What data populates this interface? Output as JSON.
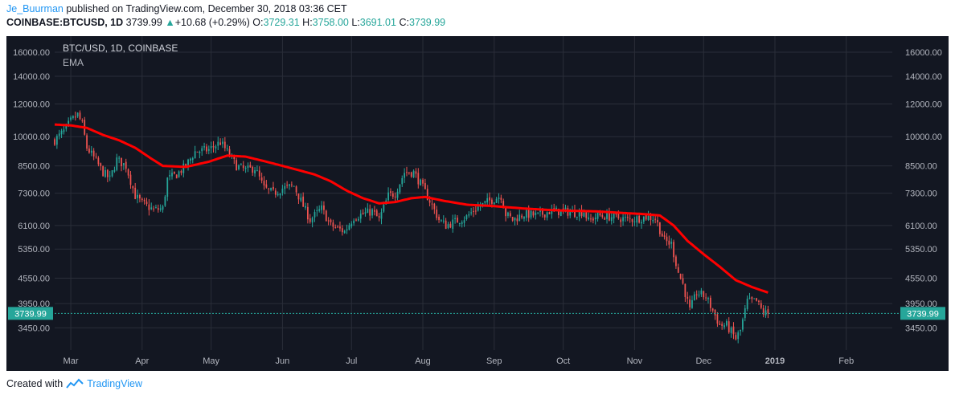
{
  "header": {
    "author": "Je_Buurman",
    "published_text": "published on TradingView.com, December 30, 2018 03:36 CET",
    "symbol": "COINBASE:BTCUSD, 1D",
    "last": "3739.99",
    "up_arrow": "▲",
    "change": "+10.68 (+0.29%)",
    "o_label": "O:",
    "o_value": "3729.31",
    "h_label": "H:",
    "h_value": "3758.00",
    "l_label": "L:",
    "l_value": "3691.01",
    "c_label": "C:",
    "c_value": "3739.99"
  },
  "footer": {
    "created_with": "Created with",
    "brand": "TradingView",
    "logo_icon": "tradingview-logo-icon"
  },
  "colors": {
    "background": "#131722",
    "grid": "#2a2e39",
    "up": "#26a69a",
    "down": "#ef5350",
    "ema": "#ff0000",
    "price_line": "#26a69a",
    "text": "#b2b5be",
    "author": "#2196f3"
  },
  "chart_data": {
    "type": "candlestick",
    "title": "BTC/USD, 1D, COINBASE",
    "indicator": "EMA",
    "last_price_label": "3739.99",
    "y_scale": "log",
    "ylim": [
      3050,
      17500
    ],
    "y_ticks": [
      "16000.00",
      "14000.00",
      "12000.00",
      "10000.00",
      "8500.00",
      "7300.00",
      "6100.00",
      "5350.00",
      "4550.00",
      "3950.00",
      "3450.00"
    ],
    "x_ticks": [
      "Mar",
      "Apr",
      "May",
      "Jun",
      "Jul",
      "Aug",
      "Sep",
      "Oct",
      "Nov",
      "Dec",
      "2019",
      "Feb"
    ],
    "x_range": [
      "2018-02-22",
      "2019-02-21"
    ],
    "ohlc_anchors": [
      [
        "2018-02-22",
        9800
      ],
      [
        "2018-02-26",
        10300
      ],
      [
        "2018-03-01",
        10900
      ],
      [
        "2018-03-04",
        11300
      ],
      [
        "2018-03-06",
        10700
      ],
      [
        "2018-03-08",
        9400
      ],
      [
        "2018-03-11",
        8900
      ],
      [
        "2018-03-15",
        8200
      ],
      [
        "2018-03-18",
        7900
      ],
      [
        "2018-03-21",
        8800
      ],
      [
        "2018-03-25",
        8500
      ],
      [
        "2018-03-29",
        7200
      ],
      [
        "2018-04-01",
        6900
      ],
      [
        "2018-04-06",
        6650
      ],
      [
        "2018-04-10",
        6700
      ],
      [
        "2018-04-12",
        7900
      ],
      [
        "2018-04-16",
        8100
      ],
      [
        "2018-04-20",
        8500
      ],
      [
        "2018-04-24",
        9200
      ],
      [
        "2018-04-30",
        9300
      ],
      [
        "2018-05-05",
        9700
      ],
      [
        "2018-05-08",
        9200
      ],
      [
        "2018-05-12",
        8500
      ],
      [
        "2018-05-16",
        8300
      ],
      [
        "2018-05-20",
        8400
      ],
      [
        "2018-05-24",
        7500
      ],
      [
        "2018-05-28",
        7300
      ],
      [
        "2018-06-01",
        7500
      ],
      [
        "2018-06-06",
        7600
      ],
      [
        "2018-06-10",
        6800
      ],
      [
        "2018-06-13",
        6300
      ],
      [
        "2018-06-18",
        6700
      ],
      [
        "2018-06-22",
        6100
      ],
      [
        "2018-06-28",
        5900
      ],
      [
        "2018-07-02",
        6400
      ],
      [
        "2018-07-06",
        6500
      ],
      [
        "2018-07-10",
        6600
      ],
      [
        "2018-07-13",
        6300
      ],
      [
        "2018-07-17",
        7200
      ],
      [
        "2018-07-20",
        7300
      ],
      [
        "2018-07-24",
        8200
      ],
      [
        "2018-07-28",
        8200
      ],
      [
        "2018-07-31",
        7700
      ],
      [
        "2018-08-04",
        7000
      ],
      [
        "2018-08-08",
        6300
      ],
      [
        "2018-08-11",
        6100
      ],
      [
        "2018-08-14",
        6200
      ],
      [
        "2018-08-20",
        6400
      ],
      [
        "2018-08-24",
        6700
      ],
      [
        "2018-08-30",
        7000
      ],
      [
        "2018-09-04",
        7200
      ],
      [
        "2018-09-06",
        6500
      ],
      [
        "2018-09-09",
        6300
      ],
      [
        "2018-09-14",
        6500
      ],
      [
        "2018-09-20",
        6450
      ],
      [
        "2018-09-25",
        6600
      ],
      [
        "2018-10-01",
        6600
      ],
      [
        "2018-10-06",
        6550
      ],
      [
        "2018-10-10",
        6600
      ],
      [
        "2018-10-12",
        6250
      ],
      [
        "2018-10-16",
        6450
      ],
      [
        "2018-10-22",
        6400
      ],
      [
        "2018-10-30",
        6300
      ],
      [
        "2018-11-06",
        6400
      ],
      [
        "2018-11-10",
        6350
      ],
      [
        "2018-11-14",
        5600
      ],
      [
        "2018-11-17",
        5500
      ],
      [
        "2018-11-20",
        4700
      ],
      [
        "2018-11-22",
        4400
      ],
      [
        "2018-11-25",
        3800
      ],
      [
        "2018-11-28",
        4200
      ],
      [
        "2018-12-02",
        4100
      ],
      [
        "2018-12-05",
        3800
      ],
      [
        "2018-12-08",
        3500
      ],
      [
        "2018-12-11",
        3500
      ],
      [
        "2018-12-15",
        3250
      ],
      [
        "2018-12-17",
        3400
      ],
      [
        "2018-12-20",
        4000
      ],
      [
        "2018-12-24",
        4000
      ],
      [
        "2018-12-27",
        3750
      ],
      [
        "2018-12-29",
        3740
      ]
    ],
    "ema_series": [
      [
        "2018-02-22",
        10700
      ],
      [
        "2018-03-01",
        10650
      ],
      [
        "2018-03-08",
        10500
      ],
      [
        "2018-03-15",
        10100
      ],
      [
        "2018-03-22",
        9800
      ],
      [
        "2018-03-29",
        9400
      ],
      [
        "2018-04-05",
        8850
      ],
      [
        "2018-04-10",
        8500
      ],
      [
        "2018-04-20",
        8450
      ],
      [
        "2018-04-30",
        8700
      ],
      [
        "2018-05-08",
        9000
      ],
      [
        "2018-05-16",
        8950
      ],
      [
        "2018-05-25",
        8700
      ],
      [
        "2018-06-01",
        8500
      ],
      [
        "2018-06-08",
        8300
      ],
      [
        "2018-06-15",
        8100
      ],
      [
        "2018-06-22",
        7800
      ],
      [
        "2018-06-29",
        7400
      ],
      [
        "2018-07-06",
        7100
      ],
      [
        "2018-07-13",
        6900
      ],
      [
        "2018-07-20",
        6950
      ],
      [
        "2018-07-27",
        7100
      ],
      [
        "2018-08-02",
        7150
      ],
      [
        "2018-08-10",
        7000
      ],
      [
        "2018-08-20",
        6850
      ],
      [
        "2018-08-31",
        6800
      ],
      [
        "2018-09-07",
        6750
      ],
      [
        "2018-09-15",
        6700
      ],
      [
        "2018-09-25",
        6650
      ],
      [
        "2018-10-05",
        6620
      ],
      [
        "2018-10-15",
        6600
      ],
      [
        "2018-10-25",
        6550
      ],
      [
        "2018-11-05",
        6500
      ],
      [
        "2018-11-12",
        6450
      ],
      [
        "2018-11-18",
        6100
      ],
      [
        "2018-11-24",
        5600
      ],
      [
        "2018-12-01",
        5200
      ],
      [
        "2018-12-08",
        4850
      ],
      [
        "2018-12-15",
        4500
      ],
      [
        "2018-12-22",
        4330
      ],
      [
        "2018-12-29",
        4200
      ]
    ]
  }
}
